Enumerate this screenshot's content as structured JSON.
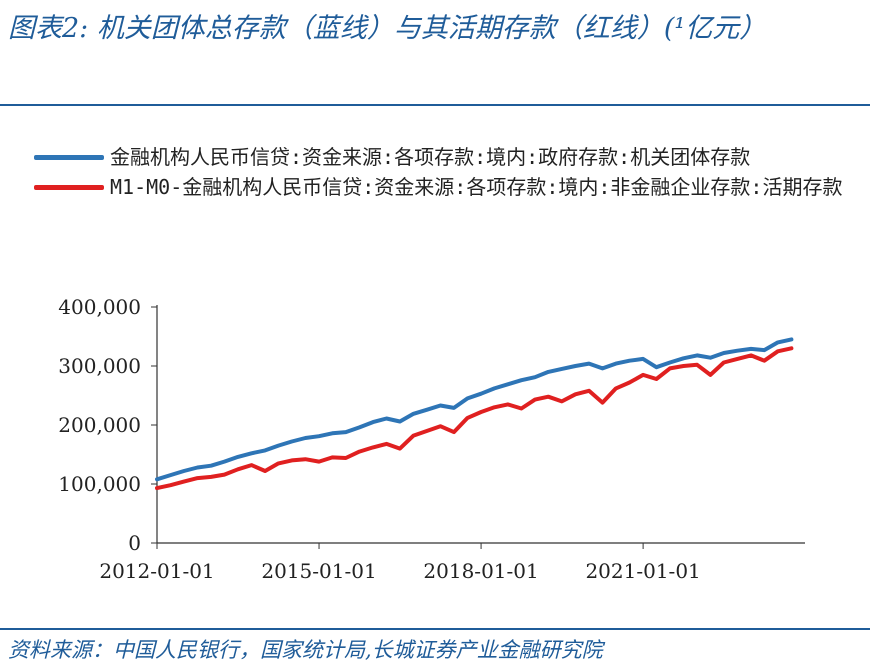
{
  "title": "图表2:  机关团体总存款（蓝线）与其活期存款（红线）(¹亿元）",
  "source": "资料来源：中国人民银行，国家统计局,长城证券产业金融研究院",
  "colors": {
    "title": "#1f5c99",
    "series_blue": "#2e75b6",
    "series_red": "#e02020"
  },
  "chart_data": {
    "type": "line",
    "title": "",
    "xlabel": "",
    "ylabel": "",
    "ylim": [
      0,
      400000
    ],
    "yticks": [
      0,
      100000,
      200000,
      300000,
      400000
    ],
    "ytick_labels": [
      "0",
      "100,000",
      "200,000",
      "300,000",
      "400,000"
    ],
    "xlim": [
      "2012-01-01",
      "2024-01-01"
    ],
    "xticks": [
      "2012-01-01",
      "2015-01-01",
      "2018-01-01",
      "2021-01-01"
    ],
    "xtick_labels": [
      "2012-01-01",
      "2015-01-01",
      "2018-01-01",
      "2021-01-01"
    ],
    "grid": false,
    "legend_position": "top",
    "series": [
      {
        "name": "金融机构人民币信贷:资金来源:各项存款:境内:政府存款:机关团体存款",
        "color": "#2e75b6",
        "x": [
          "2012-01-01",
          "2012-04-01",
          "2012-07-01",
          "2012-10-01",
          "2013-01-01",
          "2013-04-01",
          "2013-07-01",
          "2013-10-01",
          "2014-01-01",
          "2014-04-01",
          "2014-07-01",
          "2014-10-01",
          "2015-01-01",
          "2015-04-01",
          "2015-07-01",
          "2015-10-01",
          "2016-01-01",
          "2016-04-01",
          "2016-07-01",
          "2016-10-01",
          "2017-01-01",
          "2017-04-01",
          "2017-07-01",
          "2017-10-01",
          "2018-01-01",
          "2018-04-01",
          "2018-07-01",
          "2018-10-01",
          "2019-01-01",
          "2019-04-01",
          "2019-07-01",
          "2019-10-01",
          "2020-01-01",
          "2020-04-01",
          "2020-07-01",
          "2020-10-01",
          "2021-01-01",
          "2021-04-01",
          "2021-07-01",
          "2021-10-01",
          "2022-01-01",
          "2022-04-01",
          "2022-07-01",
          "2022-10-01",
          "2023-01-01",
          "2023-04-01",
          "2023-07-01",
          "2023-10-01"
        ],
        "values": [
          108000,
          115000,
          122000,
          128000,
          131000,
          138000,
          146000,
          152000,
          157000,
          165000,
          172000,
          178000,
          181000,
          186000,
          188000,
          196000,
          205000,
          211000,
          206000,
          219000,
          226000,
          233000,
          229000,
          245000,
          253000,
          262000,
          269000,
          276000,
          281000,
          290000,
          295000,
          300000,
          304000,
          296000,
          304000,
          309000,
          312000,
          298000,
          306000,
          313000,
          318000,
          314000,
          322000,
          326000,
          329000,
          327000,
          340000,
          345000
        ]
      },
      {
        "name": "M1-M0-金融机构人民币信贷:资金来源:各项存款:境内:非金融企业存款:活期存款",
        "color": "#e02020",
        "x": [
          "2012-01-01",
          "2012-04-01",
          "2012-07-01",
          "2012-10-01",
          "2013-01-01",
          "2013-04-01",
          "2013-07-01",
          "2013-10-01",
          "2014-01-01",
          "2014-04-01",
          "2014-07-01",
          "2014-10-01",
          "2015-01-01",
          "2015-04-01",
          "2015-07-01",
          "2015-10-01",
          "2016-01-01",
          "2016-04-01",
          "2016-07-01",
          "2016-10-01",
          "2017-01-01",
          "2017-04-01",
          "2017-07-01",
          "2017-10-01",
          "2018-01-01",
          "2018-04-01",
          "2018-07-01",
          "2018-10-01",
          "2019-01-01",
          "2019-04-01",
          "2019-07-01",
          "2019-10-01",
          "2020-01-01",
          "2020-04-01",
          "2020-07-01",
          "2020-10-01",
          "2021-01-01",
          "2021-04-01",
          "2021-07-01",
          "2021-10-01",
          "2022-01-01",
          "2022-04-01",
          "2022-07-01",
          "2022-10-01",
          "2023-01-01",
          "2023-04-01",
          "2023-07-01",
          "2023-10-01"
        ],
        "values": [
          93000,
          98000,
          104000,
          110000,
          112000,
          116000,
          125000,
          132000,
          122000,
          135000,
          140000,
          142000,
          138000,
          145000,
          144000,
          155000,
          162000,
          168000,
          160000,
          182000,
          190000,
          198000,
          188000,
          212000,
          222000,
          230000,
          235000,
          228000,
          243000,
          248000,
          240000,
          252000,
          258000,
          238000,
          262000,
          272000,
          285000,
          278000,
          296000,
          300000,
          302000,
          285000,
          306000,
          312000,
          318000,
          309000,
          325000,
          330000
        ]
      }
    ]
  }
}
